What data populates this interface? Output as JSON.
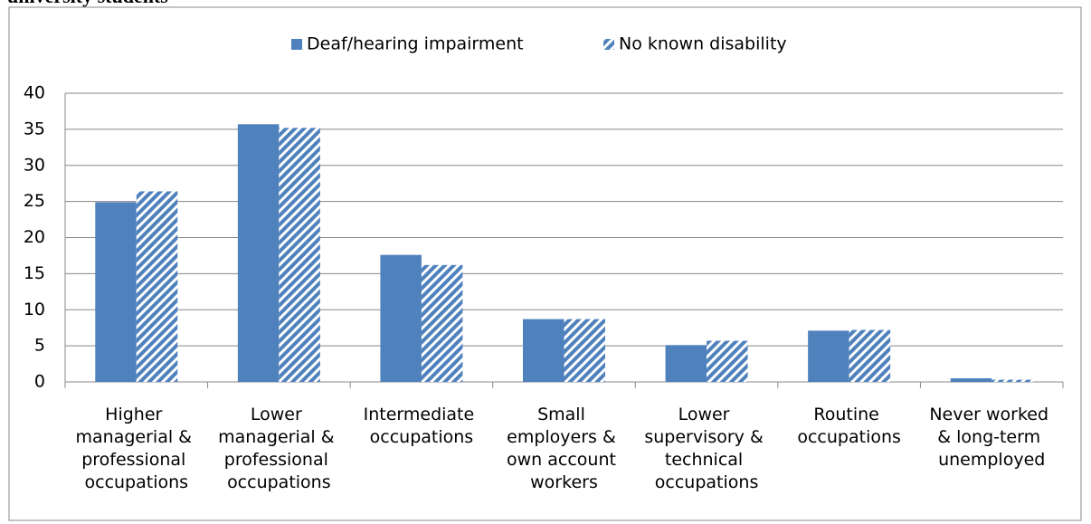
{
  "chart_data": {
    "type": "bar",
    "title": "university students",
    "categories": [
      "Higher managerial & professional occupations",
      "Lower managerial & professional occupations",
      "Intermediate occupations",
      "Small employers & own account workers",
      "Lower supervisory & technical occupations",
      "Routine occupations",
      "Never worked & long-term unemployed"
    ],
    "series": [
      {
        "name": "Deaf/hearing impairment",
        "color": "#4f81bd",
        "pattern": "solid",
        "values": [
          24.9,
          35.7,
          17.6,
          8.7,
          5.1,
          7.1,
          0.5
        ]
      },
      {
        "name": "No known disability",
        "color": "#4f81bd",
        "pattern": "hatched",
        "values": [
          26.4,
          35.2,
          16.2,
          8.7,
          5.7,
          7.2,
          0.3
        ]
      }
    ],
    "ylim": [
      0,
      40
    ],
    "yticks": [
      0,
      5,
      10,
      15,
      20,
      25,
      30,
      35,
      40
    ],
    "grid": true,
    "legend": "top"
  }
}
